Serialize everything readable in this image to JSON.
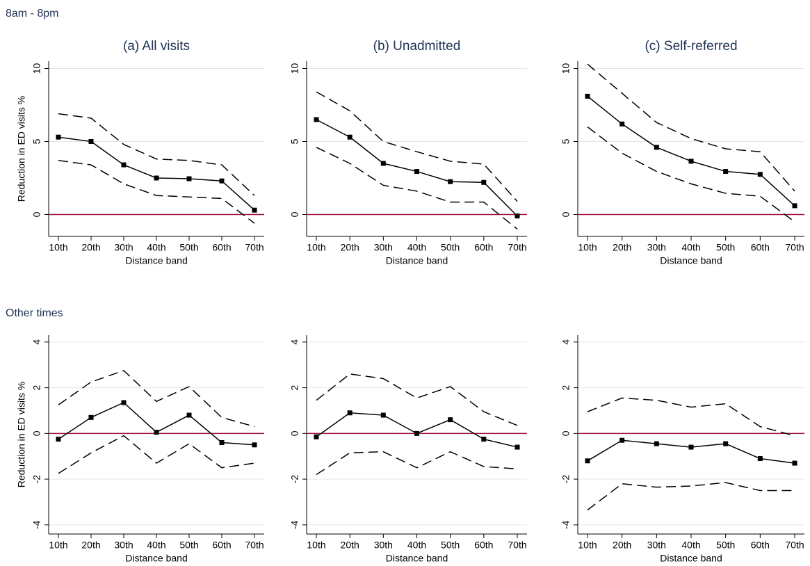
{
  "section_labels": [
    "8am - 8pm",
    "Other times"
  ],
  "chart_data": [
    {
      "type": "line",
      "title": "(a) All visits",
      "xlabel": "Distance band",
      "ylabel": "Reduction in ED visits %",
      "categories": [
        "10th",
        "20th",
        "30th",
        "40th",
        "50th",
        "60th",
        "70th"
      ],
      "ylim": [
        -1.5,
        10.5
      ],
      "yticks": [
        0,
        5,
        10
      ],
      "grid": true,
      "reference_line": {
        "value": 0,
        "color": "#a0153e"
      },
      "series": [
        {
          "color": "#000000",
          "dash": "solid",
          "marker": "square",
          "values": [
            5.3,
            5.0,
            3.4,
            2.5,
            2.45,
            2.3,
            0.3
          ]
        },
        {
          "color": "#000000",
          "dash": "dashed",
          "values": [
            6.9,
            6.6,
            4.8,
            3.8,
            3.7,
            3.4,
            1.3
          ]
        },
        {
          "color": "#000000",
          "dash": "dashed",
          "values": [
            3.7,
            3.4,
            2.1,
            1.3,
            1.2,
            1.1,
            -0.6
          ]
        }
      ]
    },
    {
      "type": "line",
      "title": "(b) Unadmitted",
      "xlabel": "Distance band",
      "categories": [
        "10th",
        "20th",
        "30th",
        "40th",
        "50th",
        "60th",
        "70th"
      ],
      "ylim": [
        -1.5,
        10.5
      ],
      "yticks": [
        0,
        5,
        10
      ],
      "grid": true,
      "reference_line": {
        "value": 0,
        "color": "#a0153e"
      },
      "series": [
        {
          "color": "#000000",
          "dash": "solid",
          "marker": "square",
          "values": [
            6.5,
            5.3,
            3.5,
            2.95,
            2.25,
            2.2,
            -0.1
          ]
        },
        {
          "color": "#000000",
          "dash": "dashed",
          "values": [
            8.4,
            7.1,
            5.0,
            4.3,
            3.65,
            3.45,
            0.9
          ]
        },
        {
          "color": "#000000",
          "dash": "dashed",
          "values": [
            4.6,
            3.5,
            2.0,
            1.6,
            0.85,
            0.85,
            -1.0
          ]
        }
      ]
    },
    {
      "type": "line",
      "title": "(c) Self-referred",
      "xlabel": "Distance band",
      "categories": [
        "10th",
        "20th",
        "30th",
        "40th",
        "50th",
        "60th",
        "70th"
      ],
      "ylim": [
        -1.5,
        10.5
      ],
      "yticks": [
        0,
        5,
        10
      ],
      "grid": true,
      "reference_line": {
        "value": 0,
        "color": "#a0153e"
      },
      "series": [
        {
          "color": "#000000",
          "dash": "solid",
          "marker": "square",
          "values": [
            8.1,
            6.2,
            4.6,
            3.65,
            2.95,
            2.75,
            0.6
          ]
        },
        {
          "color": "#000000",
          "dash": "dashed",
          "values": [
            10.3,
            8.3,
            6.3,
            5.2,
            4.5,
            4.3,
            1.6
          ]
        },
        {
          "color": "#000000",
          "dash": "dashed",
          "values": [
            6.0,
            4.2,
            2.95,
            2.1,
            1.45,
            1.25,
            -0.5
          ]
        }
      ]
    },
    {
      "type": "line",
      "xlabel": "Distance band",
      "ylabel": "Reduction in ED visits %",
      "categories": [
        "10th",
        "20th",
        "30th",
        "40th",
        "50th",
        "60th",
        "70th"
      ],
      "ylim": [
        -4.4,
        4.3
      ],
      "yticks": [
        -4,
        -2,
        0,
        2,
        4
      ],
      "grid": true,
      "reference_line": {
        "value": 0,
        "color": "#a0153e"
      },
      "series": [
        {
          "color": "#000000",
          "dash": "solid",
          "marker": "square",
          "values": [
            -0.25,
            0.7,
            1.35,
            0.05,
            0.8,
            -0.4,
            -0.5
          ]
        },
        {
          "color": "#000000",
          "dash": "dashed",
          "values": [
            1.25,
            2.25,
            2.75,
            1.4,
            2.05,
            0.7,
            0.3
          ]
        },
        {
          "color": "#000000",
          "dash": "dashed",
          "values": [
            -1.75,
            -0.85,
            -0.1,
            -1.3,
            -0.45,
            -1.5,
            -1.3
          ]
        }
      ]
    },
    {
      "type": "line",
      "xlabel": "Distance band",
      "categories": [
        "10th",
        "20th",
        "30th",
        "40th",
        "50th",
        "60th",
        "70th"
      ],
      "ylim": [
        -4.4,
        4.3
      ],
      "yticks": [
        -4,
        -2,
        0,
        2,
        4
      ],
      "grid": true,
      "reference_line": {
        "value": 0,
        "color": "#a0153e"
      },
      "series": [
        {
          "color": "#000000",
          "dash": "solid",
          "marker": "square",
          "values": [
            -0.15,
            0.9,
            0.8,
            0.0,
            0.6,
            -0.25,
            -0.6
          ]
        },
        {
          "color": "#000000",
          "dash": "dashed",
          "values": [
            1.45,
            2.6,
            2.4,
            1.55,
            2.05,
            0.95,
            0.35
          ]
        },
        {
          "color": "#000000",
          "dash": "dashed",
          "values": [
            -1.8,
            -0.85,
            -0.8,
            -1.5,
            -0.8,
            -1.45,
            -1.55
          ]
        }
      ]
    },
    {
      "type": "line",
      "xlabel": "Distance band",
      "categories": [
        "10th",
        "20th",
        "30th",
        "40th",
        "50th",
        "60th",
        "70th"
      ],
      "ylim": [
        -4.4,
        4.3
      ],
      "yticks": [
        -4,
        -2,
        0,
        2,
        4
      ],
      "grid": true,
      "reference_line": {
        "value": 0,
        "color": "#a0153e"
      },
      "series": [
        {
          "color": "#000000",
          "dash": "solid",
          "marker": "square",
          "values": [
            -1.2,
            -0.3,
            -0.45,
            -0.6,
            -0.45,
            -1.1,
            -1.3
          ]
        },
        {
          "color": "#000000",
          "dash": "dashed",
          "values": [
            0.95,
            1.55,
            1.45,
            1.15,
            1.3,
            0.3,
            -0.1
          ]
        },
        {
          "color": "#000000",
          "dash": "dashed",
          "values": [
            -3.35,
            -2.2,
            -2.35,
            -2.3,
            -2.15,
            -2.5,
            -2.5
          ]
        }
      ]
    }
  ]
}
